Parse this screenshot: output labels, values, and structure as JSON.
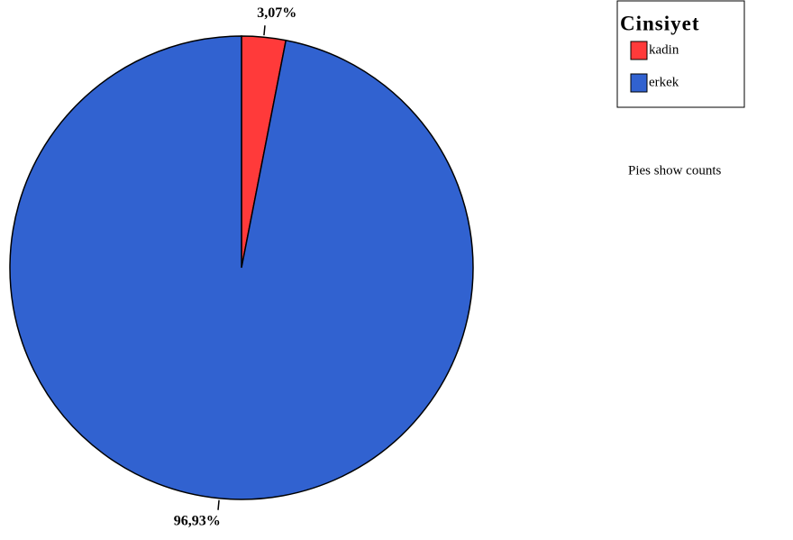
{
  "chart_data": {
    "type": "pie",
    "categories": [
      "kadin",
      "erkek"
    ],
    "values": [
      3.07,
      96.93
    ],
    "value_labels": [
      "3,07%",
      "96,93%"
    ],
    "colors": [
      "#ff3a3a",
      "#3162d0"
    ],
    "legend_title": "Cinsiyet",
    "legend": "top-right",
    "note": "Pies show counts"
  }
}
